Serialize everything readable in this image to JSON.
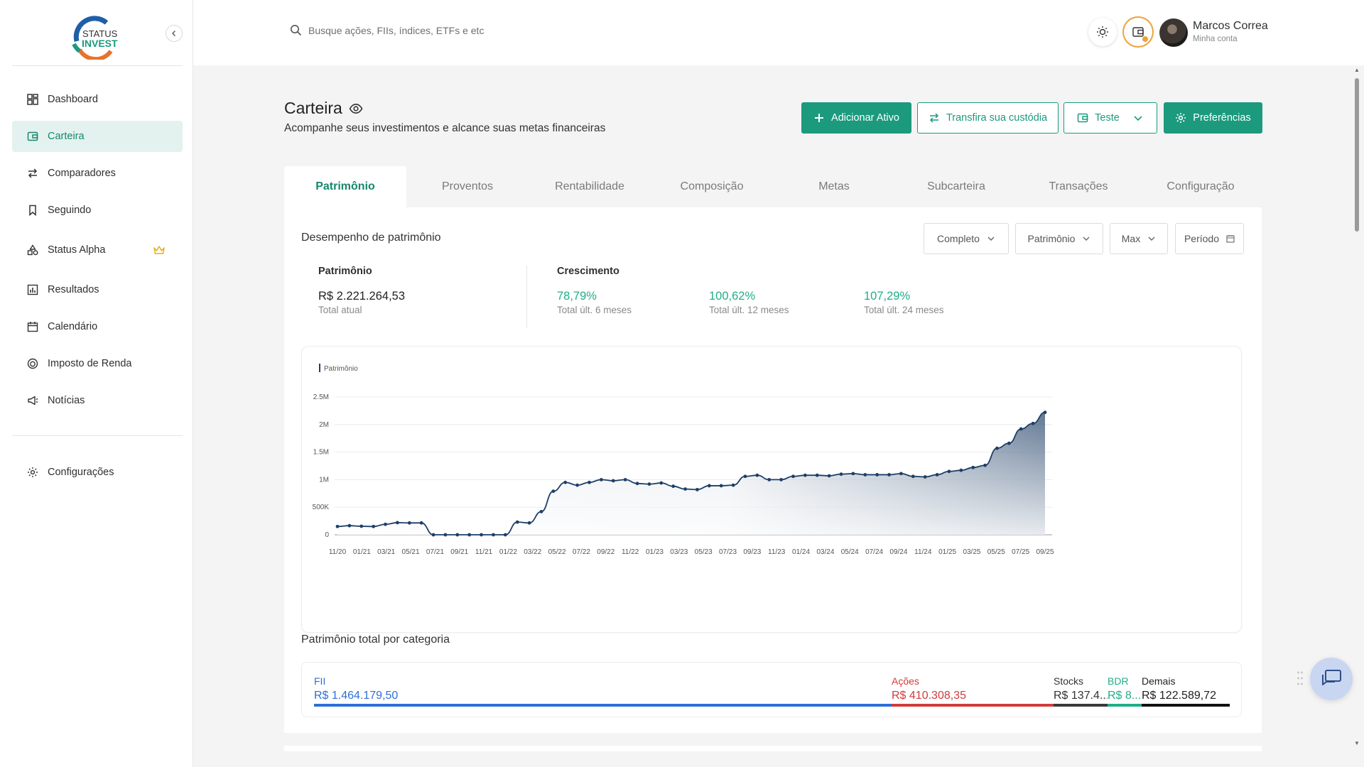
{
  "brand": {
    "logo_line1": "STATUS",
    "logo_line2": "INVEST"
  },
  "sidebar": {
    "items": [
      {
        "label": "Dashboard",
        "icon": "dashboard-icon"
      },
      {
        "label": "Carteira",
        "icon": "wallet-icon",
        "active": true
      },
      {
        "label": "Comparadores",
        "icon": "compare-arrows-icon"
      },
      {
        "label": "Seguindo",
        "icon": "bookmark-icon"
      },
      {
        "label": "Status Alpha",
        "icon": "shapes-icon",
        "badge_icon": "crown-icon"
      },
      {
        "label": "Resultados",
        "icon": "bar-chart-icon"
      },
      {
        "label": "Calendário",
        "icon": "calendar-icon"
      },
      {
        "label": "Imposto de Renda",
        "icon": "lion-icon"
      },
      {
        "label": "Notícias",
        "icon": "megaphone-icon"
      }
    ],
    "footer_item": {
      "label": "Configurações",
      "icon": "gear-icon"
    }
  },
  "topbar": {
    "search_placeholder": "Busque ações, FIIs, índices, ETFs e etc",
    "user_name": "Marcos Correa",
    "user_sub": "Minha conta"
  },
  "header": {
    "title": "Carteira",
    "subtitle": "Acompanhe seus investimentos e alcance suas metas financeiras",
    "buttons": {
      "add": "Adicionar Ativo",
      "transfer": "Transfira sua custódia",
      "wallet_select": "Teste",
      "prefs": "Preferências"
    }
  },
  "tabs": [
    "Patrimônio",
    "Proventos",
    "Rentabilidade",
    "Composição",
    "Metas",
    "Subcarteira",
    "Transações",
    "Configuração"
  ],
  "panel": {
    "title": "Desempenho de patrimônio",
    "filters": {
      "mode": "Completo",
      "metric": "Patrimônio",
      "range": "Max",
      "period": "Período"
    },
    "patrimonio": {
      "label": "Patrimônio",
      "value": "R$ 2.221.264,53",
      "sub": "Total atual"
    },
    "crescimento": {
      "label": "Crescimento",
      "items": [
        {
          "value": "78,79%",
          "sub": "Total últ. 6 meses"
        },
        {
          "value": "100,62%",
          "sub": "Total últ. 12 meses"
        },
        {
          "value": "107,29%",
          "sub": "Total últ. 24 meses"
        }
      ]
    },
    "categories": {
      "title": "Patrimônio total por categoria",
      "items": [
        {
          "name": "FII",
          "value": "R$ 1.464.179,50",
          "color": "#2f6fd6"
        },
        {
          "name": "Ações",
          "value": "R$ 410.308,35",
          "color": "#d03c3c"
        },
        {
          "name": "Stocks",
          "value": "R$ 137.4...",
          "color": "#3a3a3a"
        },
        {
          "name": "BDR",
          "value": "R$ 8...",
          "color": "#1fae88"
        },
        {
          "name": "Demais",
          "value": "R$ 122.589,72",
          "color": "#111111"
        }
      ]
    }
  },
  "colors": {
    "accent": "#1b9a7e",
    "line": "#1f3f66",
    "positive": "#1fae88"
  },
  "chart_data": {
    "type": "area",
    "legend": [
      "Patrimônio"
    ],
    "ylim": [
      0,
      2500000
    ],
    "yticks": [
      "0",
      "500K",
      "1M",
      "1.5M",
      "2M",
      "2.5M"
    ],
    "xticks": [
      "11/20",
      "01/21",
      "03/21",
      "05/21",
      "07/21",
      "09/21",
      "11/21",
      "01/22",
      "03/22",
      "05/22",
      "07/22",
      "09/22",
      "11/22",
      "01/23",
      "03/23",
      "05/23",
      "07/23",
      "09/23",
      "11/23",
      "01/24",
      "03/24",
      "05/24",
      "07/24",
      "09/24",
      "11/24",
      "01/25",
      "03/25",
      "05/25",
      "07/25",
      "09/25"
    ],
    "series": [
      {
        "name": "Patrimônio",
        "values": [
          150000,
          165000,
          155000,
          150000,
          190000,
          220000,
          215000,
          215000,
          0,
          0,
          0,
          0,
          0,
          0,
          0,
          230000,
          215000,
          420000,
          790000,
          950000,
          900000,
          950000,
          1000000,
          980000,
          1000000,
          930000,
          920000,
          940000,
          880000,
          830000,
          820000,
          890000,
          890000,
          900000,
          1060000,
          1080000,
          1000000,
          1000000,
          1060000,
          1080000,
          1080000,
          1070000,
          1100000,
          1110000,
          1090000,
          1090000,
          1090000,
          1110000,
          1060000,
          1050000,
          1090000,
          1150000,
          1170000,
          1220000,
          1260000,
          1570000,
          1660000,
          1920000,
          2020000,
          2221264
        ]
      }
    ]
  }
}
